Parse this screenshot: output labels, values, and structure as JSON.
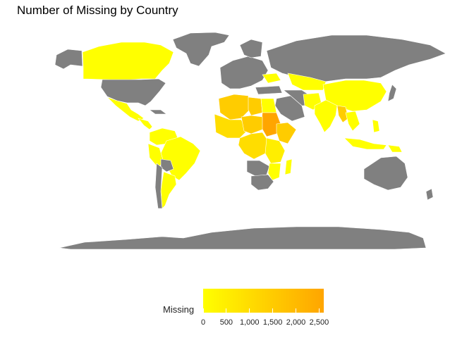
{
  "title": "Number of Missing by Country",
  "legend": {
    "title": "Missing",
    "ticks": [
      "0",
      "500",
      "1,000",
      "1,500",
      "2,000",
      "2,500"
    ],
    "colors": {
      "low": "#ffff00",
      "high": "#ffa500"
    },
    "min": 0,
    "max": 2600
  },
  "colors": {
    "no_data": "#808080",
    "border": "#ffffff",
    "low": "#ffff00",
    "mid": "#ffcc00",
    "high": "#ffa500"
  }
}
